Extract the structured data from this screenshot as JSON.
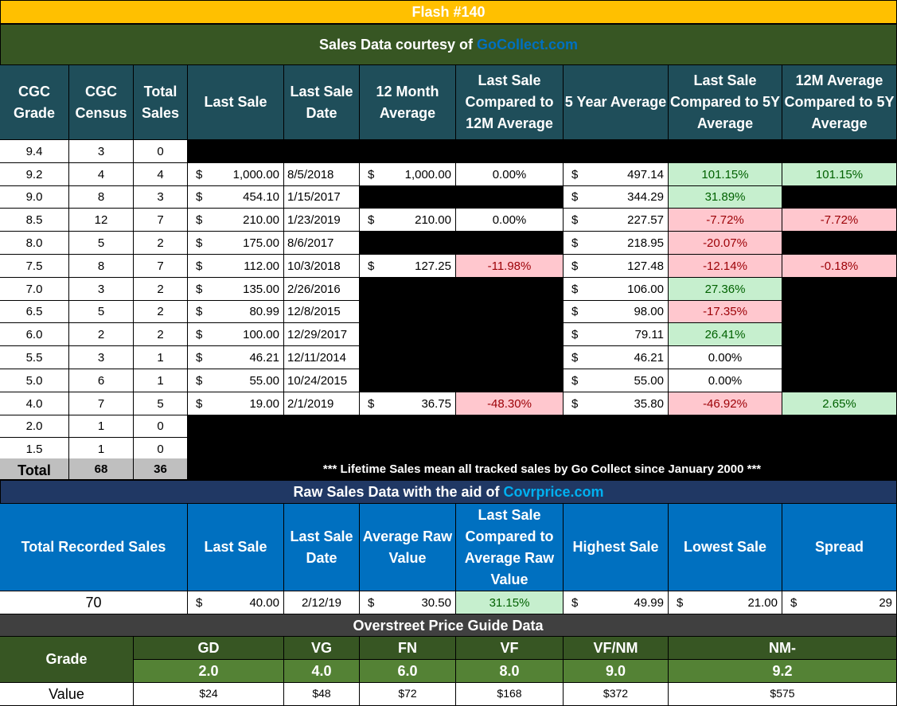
{
  "title": "Flash #140",
  "sales_banner": {
    "prefix": "Sales Data courtesy of ",
    "link": "GoCollect.com"
  },
  "headers": [
    "CGC Grade",
    "CGC Census",
    "Total Sales",
    "Last Sale",
    "Last Sale Date",
    "12 Month Average",
    "Last Sale Compared to 12M Average",
    "5 Year Average",
    "Last Sale Compared to 5Y Average",
    "12M Average Compared to 5Y Average"
  ],
  "rows": [
    {
      "grade": "9.4",
      "census": "3",
      "total": "0"
    },
    {
      "grade": "9.2",
      "census": "4",
      "total": "4",
      "last": "1,000.00",
      "date": "8/5/2018",
      "avg12": "1,000.00",
      "cmp12": "0.00%",
      "avg5": "497.14",
      "cmp5": "101.15%",
      "cmp12v5": "101.15%"
    },
    {
      "grade": "9.0",
      "census": "8",
      "total": "3",
      "last": "454.10",
      "date": "1/15/2017",
      "avg5": "344.29",
      "cmp5": "31.89%"
    },
    {
      "grade": "8.5",
      "census": "12",
      "total": "7",
      "last": "210.00",
      "date": "1/23/2019",
      "avg12": "210.00",
      "cmp12": "0.00%",
      "avg5": "227.57",
      "cmp5": "-7.72%",
      "cmp12v5": "-7.72%"
    },
    {
      "grade": "8.0",
      "census": "5",
      "total": "2",
      "last": "175.00",
      "date": "8/6/2017",
      "avg5": "218.95",
      "cmp5": "-20.07%"
    },
    {
      "grade": "7.5",
      "census": "8",
      "total": "7",
      "last": "112.00",
      "date": "10/3/2018",
      "avg12": "127.25",
      "cmp12": "-11.98%",
      "avg5": "127.48",
      "cmp5": "-12.14%",
      "cmp12v5": "-0.18%"
    },
    {
      "grade": "7.0",
      "census": "3",
      "total": "2",
      "last": "135.00",
      "date": "2/26/2016",
      "avg5": "106.00",
      "cmp5": "27.36%"
    },
    {
      "grade": "6.5",
      "census": "5",
      "total": "2",
      "last": "80.99",
      "date": "12/8/2015",
      "avg5": "98.00",
      "cmp5": "-17.35%"
    },
    {
      "grade": "6.0",
      "census": "2",
      "total": "2",
      "last": "100.00",
      "date": "12/29/2017",
      "avg5": "79.11",
      "cmp5": "26.41%"
    },
    {
      "grade": "5.5",
      "census": "3",
      "total": "1",
      "last": "46.21",
      "date": "12/11/2014",
      "avg5": "46.21",
      "cmp5": "0.00%"
    },
    {
      "grade": "5.0",
      "census": "6",
      "total": "1",
      "last": "55.00",
      "date": "10/24/2015",
      "avg5": "55.00",
      "cmp5": "0.00%"
    },
    {
      "grade": "4.0",
      "census": "7",
      "total": "5",
      "last": "19.00",
      "date": "2/1/2019",
      "avg12": "36.75",
      "cmp12": "-48.30%",
      "avg5": "35.80",
      "cmp5": "-46.92%",
      "cmp12v5": "2.65%"
    },
    {
      "grade": "2.0",
      "census": "1",
      "total": "0"
    },
    {
      "grade": "1.5",
      "census": "1",
      "total": "0"
    }
  ],
  "totals": {
    "label": "Total",
    "census": "68",
    "total": "36"
  },
  "footnote": "*** Lifetime Sales mean all tracked sales by Go Collect since January 2000 ***",
  "currency": "$",
  "raw_banner": {
    "prefix": "Raw Sales Data with the aid of ",
    "link": "Covrprice.com"
  },
  "raw_headers": [
    "Total Recorded Sales",
    "Last Sale",
    "Last Sale Date",
    "Average Raw Value",
    "Last Sale Compared to Average Raw Value",
    "Highest Sale",
    "Lowest Sale",
    "Spread"
  ],
  "raw_row": {
    "total": "70",
    "last": "40.00",
    "date": "2/12/19",
    "avg": "30.50",
    "cmp": "31.15%",
    "high": "49.99",
    "low": "21.00",
    "spread": "29"
  },
  "overstreet_banner": "Overstreet Price Guide Data",
  "overstreet": {
    "grade_label": "Grade",
    "value_label": "Value",
    "cols": [
      {
        "name": "GD",
        "grade": "2.0",
        "value": "$24"
      },
      {
        "name": "VG",
        "grade": "4.0",
        "value": "$48"
      },
      {
        "name": "FN",
        "grade": "6.0",
        "value": "$72"
      },
      {
        "name": "VF",
        "grade": "8.0",
        "value": "$168"
      },
      {
        "name": "VF/NM",
        "grade": "9.0",
        "value": "$372"
      },
      {
        "name": "NM-",
        "grade": "9.2",
        "value": "$575"
      }
    ]
  },
  "colors": {
    "title_bar": "#ffc000",
    "sales_banner": "#375623",
    "header": "#1f4e5a",
    "positive_fill": "#c6efce",
    "negative_fill": "#ffc7ce",
    "raw_banner": "#203864",
    "raw_header": "#0070c0",
    "link": "#0070c0",
    "link_raw": "#00b0f0"
  }
}
